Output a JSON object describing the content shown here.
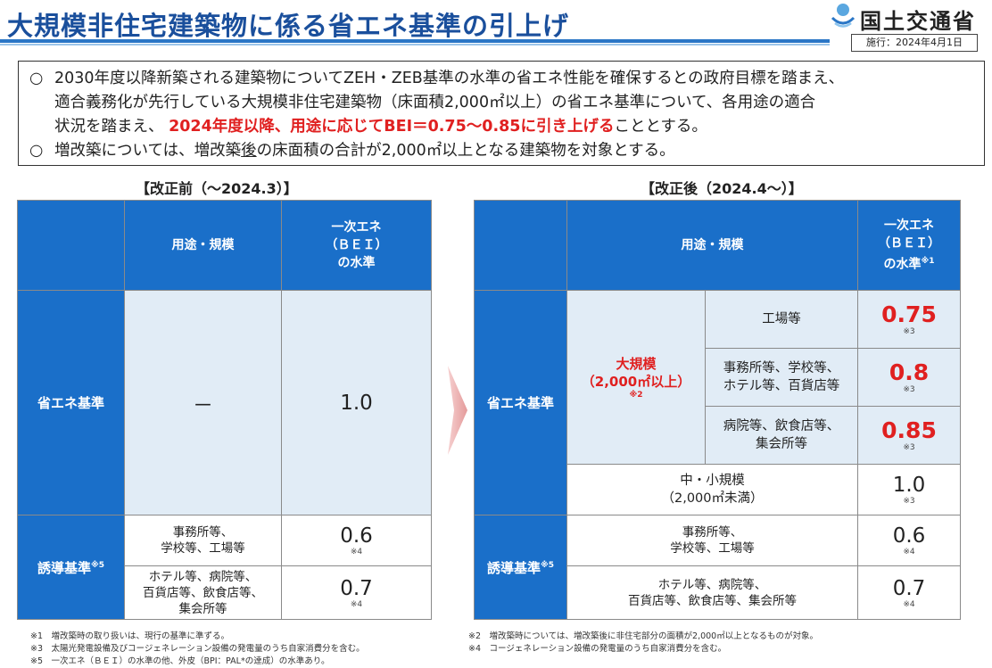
{
  "header": {
    "title": "大規模非住宅建築物に係る省エネ基準の引上げ",
    "logo_text": "国土交通省",
    "effective_date": "施行：2024年4月1日"
  },
  "summary": {
    "b1_mark": "○",
    "b1_line1": "2030年度以降新築される建築物についてZEH・ZEB基準の水準の省エネ性能を確保するとの政府目標を踏まえ、",
    "b1_line2": "適合義務化が先行している大規模非住宅建築物（床面積2,000㎡以上）の省エネ基準について、各用途の適合",
    "b1_line3_pre": "状況を踏まえ、",
    "b1_line3_red": "2024年度以降、用途に応じてBEI＝0.75～0.85に引き上げる",
    "b1_line3_post": "こととする。",
    "b2_mark": "○",
    "b2_pre": "増改築については、増改築",
    "b2_under": "後",
    "b2_post": "の床面積の合計が2,000㎡以上となる建築物を対象とする。"
  },
  "before": {
    "title": "【改正前（～2024.3）】",
    "h_use": "用途・規模",
    "h_bei_1": "一次エネ",
    "h_bei_2": "（ＢＥＩ）",
    "h_bei_3": "の水準",
    "row_std": "省エネ基準",
    "std_use": "－",
    "std_val": "1.0",
    "row_ind": "誘導基準",
    "row_ind_note": "※5",
    "ind1_use_1": "事務所等、",
    "ind1_use_2": "学校等、工場等",
    "ind1_val": "0.6",
    "ind1_ref": "※4",
    "ind2_use_1": "ホテル等、病院等、",
    "ind2_use_2": "百貨店等、飲食店等、",
    "ind2_use_3": "集会所等",
    "ind2_val": "0.7",
    "ind2_ref": "※4"
  },
  "after": {
    "title": "【改正後（2024.4～）】",
    "h_use": "用途・規模",
    "h_bei_1": "一次エネ",
    "h_bei_2": "（ＢＥＩ）",
    "h_bei_3": "の水準",
    "h_bei_note": "※1",
    "row_std": "省エネ基準",
    "large_1": "大規模",
    "large_2": "（2,000㎡以上）",
    "large_ref": "※2",
    "u1": "工場等",
    "v1": "0.75",
    "r1": "※3",
    "u2_1": "事務所等、学校等、",
    "u2_2": "ホテル等、百貨店等",
    "v2": "0.8",
    "r2": "※3",
    "u3_1": "病院等、飲食店等、",
    "u3_2": "集会所等",
    "v3": "0.85",
    "r3": "※3",
    "small_1": "中・小規模",
    "small_2": "（2,000㎡未満）",
    "small_val": "1.0",
    "small_ref": "※3",
    "row_ind": "誘導基準",
    "row_ind_note": "※5",
    "ind1_use_1": "事務所等、",
    "ind1_use_2": "学校等、工場等",
    "ind1_val": "0.6",
    "ind1_ref": "※4",
    "ind2_use_1": "ホテル等、病院等、",
    "ind2_use_2": "百貨店等、飲食店等、集会所等",
    "ind2_val": "0.7",
    "ind2_ref": "※4"
  },
  "footnotes": {
    "n1": "※1　増改築時の取り扱いは、現行の基準に準ずる。",
    "n3": "※3　太陽光発電設備及びコージェネレーション設備の発電量のうち自家消費分を含む。",
    "n5": "※5　一次エネ（ＢＥＩ）の水準の他、外皮（BPI：PAL*の達成）の水準あり。",
    "n2": "※2　増改築時については、増改築後に非住宅部分の面積が2,000㎡以上となるものが対象。",
    "n4": "※4　コージェネレーション設備の発電量のうち自家消費分を含む。"
  },
  "colors": {
    "accent_blue": "#1a6fc9",
    "title_blue": "#1a4f9c",
    "highlight_red": "#e02020",
    "pale_blue": "#e1ecf6"
  }
}
